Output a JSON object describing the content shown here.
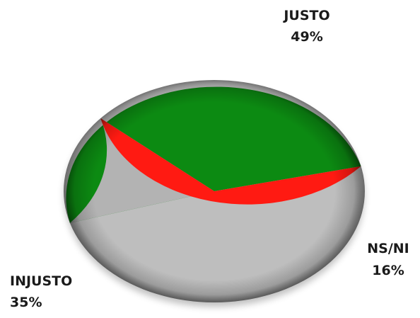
{
  "chart_data": {
    "type": "pie",
    "title": "",
    "slices": [
      {
        "label": "JUSTO",
        "value": 49,
        "display": "49%",
        "color": "#0c8a12"
      },
      {
        "label": "NS/NI",
        "value": 16,
        "display": "16%",
        "color": "#b3b3b3"
      },
      {
        "label": "INJUSTO",
        "value": 35,
        "display": "35%",
        "color": "#ff1a12"
      }
    ],
    "style": "3d-tilted",
    "legend": "none"
  }
}
